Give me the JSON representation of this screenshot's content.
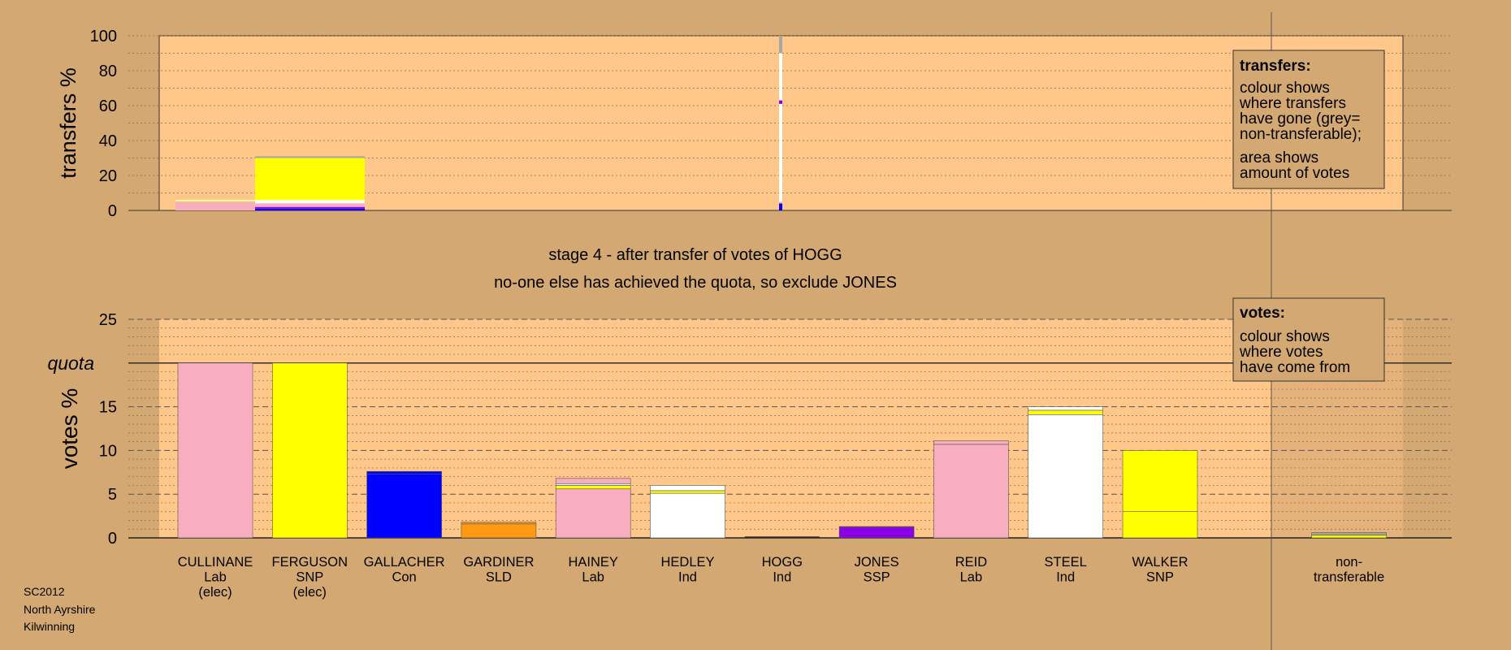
{
  "stage_title": "stage 4 - after transfer of votes of HOGG",
  "stage_note": "no-one else has achieved the quota, so exclude JONES",
  "footer": [
    "SC2012",
    "North Ayrshire",
    "Kilwinning"
  ],
  "legend_transfers": {
    "title": "transfers:",
    "lines": [
      "colour shows",
      "where transfers",
      "have gone (grey=",
      "non-transferable);",
      "area shows",
      "amount of votes"
    ]
  },
  "legend_votes": {
    "title": "votes:",
    "lines": [
      "colour shows",
      "where votes",
      "have come from"
    ]
  },
  "colors": {
    "Lab": "#f9aec0",
    "SNP": "#ffff00",
    "Con": "#0000ff",
    "SLD": "#ff9914",
    "Ind": "#ffffff",
    "SSP": "#8a00e6",
    "nontransferable": "#a6a6a6",
    "plot_bg": "#ffc78a",
    "page_bg": "#d4a872"
  },
  "chart_data": [
    {
      "type": "bar",
      "name": "transfers",
      "ylabel": "transfers %",
      "ylim": [
        0,
        100
      ],
      "yticks": [
        0,
        20,
        40,
        60,
        80,
        100
      ],
      "grid": true,
      "legend_position": "top-right",
      "categories": [
        "CULLINANE",
        "FERGUSON",
        "GALLACHER",
        "GARDINER",
        "HAINEY",
        "HEDLEY",
        "HOGG",
        "JONES",
        "REID",
        "STEEL",
        "WALKER",
        "non-transferable"
      ],
      "bars": [
        {
          "category": "CULLINANE",
          "value": 6,
          "segments": [
            {
              "party": "Lab",
              "value": 5
            },
            {
              "party": "SNP",
              "value": 0.5
            },
            {
              "party": "Ind",
              "value": 0.5
            }
          ]
        },
        {
          "category": "FERGUSON",
          "value": 31,
          "segments": [
            {
              "party": "Con",
              "value": 1
            },
            {
              "party": "SSP",
              "value": 1
            },
            {
              "party": "Lab",
              "value": 2
            },
            {
              "party": "Ind",
              "value": 2
            },
            {
              "party": "SNP",
              "value": 24
            },
            {
              "party": "nontransferable",
              "value": 1
            }
          ]
        },
        {
          "category": "HOGG",
          "value": 100,
          "segments": [
            {
              "party": "Con",
              "value": 4
            },
            {
              "party": "Lab",
              "value": 1
            },
            {
              "party": "Ind",
              "value": 56
            },
            {
              "party": "SSP",
              "value": 2
            },
            {
              "party": "Ind",
              "value": 27
            },
            {
              "party": "nontransferable",
              "value": 10
            }
          ]
        }
      ]
    },
    {
      "type": "bar",
      "name": "votes",
      "ylabel": "votes %",
      "ylim": [
        0,
        25
      ],
      "yticks": [
        0,
        5,
        10,
        15,
        20,
        25
      ],
      "quota_label": "quota",
      "quota": 20,
      "grid": true,
      "legend_position": "top-right",
      "categories": [
        {
          "name": "CULLINANE",
          "party": "Lab",
          "status": "(elec)"
        },
        {
          "name": "FERGUSON",
          "party": "SNP",
          "status": "(elec)"
        },
        {
          "name": "GALLACHER",
          "party": "Con",
          "status": ""
        },
        {
          "name": "GARDINER",
          "party": "SLD",
          "status": ""
        },
        {
          "name": "HAINEY",
          "party": "Lab",
          "status": ""
        },
        {
          "name": "HEDLEY",
          "party": "Ind",
          "status": ""
        },
        {
          "name": "HOGG",
          "party": "Ind",
          "status": ""
        },
        {
          "name": "JONES",
          "party": "SSP",
          "status": ""
        },
        {
          "name": "REID",
          "party": "Lab",
          "status": ""
        },
        {
          "name": "STEEL",
          "party": "Ind",
          "status": ""
        },
        {
          "name": "WALKER",
          "party": "SNP",
          "status": ""
        },
        {
          "name": "",
          "party": "",
          "status": ""
        },
        {
          "name": "non-",
          "party": "transferable",
          "status": ""
        }
      ],
      "bars": [
        {
          "category": "CULLINANE",
          "value": 20,
          "segments": [
            {
              "party": "Lab",
              "value": 20
            }
          ]
        },
        {
          "category": "FERGUSON",
          "value": 20,
          "segments": [
            {
              "party": "SNP",
              "value": 20
            }
          ]
        },
        {
          "category": "GALLACHER",
          "value": 7.6,
          "segments": [
            {
              "party": "Con",
              "value": 7.3
            },
            {
              "party": "Con",
              "value": 0.3
            }
          ]
        },
        {
          "category": "GARDINER",
          "value": 1.8,
          "segments": [
            {
              "party": "SLD",
              "value": 1.6
            },
            {
              "party": "SLD",
              "value": 0.2
            }
          ]
        },
        {
          "category": "HAINEY",
          "value": 6.8,
          "segments": [
            {
              "party": "Lab",
              "value": 5.6
            },
            {
              "party": "SNP",
              "value": 0.4
            },
            {
              "party": "Ind",
              "value": 0.2
            },
            {
              "party": "Lab",
              "value": 0.6
            }
          ]
        },
        {
          "category": "HEDLEY",
          "value": 6.0,
          "segments": [
            {
              "party": "Ind",
              "value": 5.1
            },
            {
              "party": "SNP",
              "value": 0.3
            },
            {
              "party": "Ind",
              "value": 0.6
            }
          ]
        },
        {
          "category": "HOGG",
          "value": 0,
          "segments": []
        },
        {
          "category": "JONES",
          "value": 1.3,
          "segments": [
            {
              "party": "SSP",
              "value": 1.2
            },
            {
              "party": "SSP",
              "value": 0.1
            }
          ]
        },
        {
          "category": "REID",
          "value": 11.1,
          "segments": [
            {
              "party": "Lab",
              "value": 10.7
            },
            {
              "party": "Lab",
              "value": 0.4
            }
          ]
        },
        {
          "category": "STEEL",
          "value": 15.0,
          "segments": [
            {
              "party": "Ind",
              "value": 14.1
            },
            {
              "party": "SNP",
              "value": 0.5
            },
            {
              "party": "Ind",
              "value": 0.4
            }
          ]
        },
        {
          "category": "WALKER",
          "value": 10.0,
          "segments": [
            {
              "party": "SNP",
              "value": 3.0
            },
            {
              "party": "SNP",
              "value": 7.0
            }
          ]
        },
        {
          "category": "non-transferable",
          "value": 0.6,
          "segments": [
            {
              "party": "SNP",
              "value": 0.3
            },
            {
              "party": "nontransferable",
              "value": 0.3
            }
          ]
        }
      ]
    }
  ]
}
